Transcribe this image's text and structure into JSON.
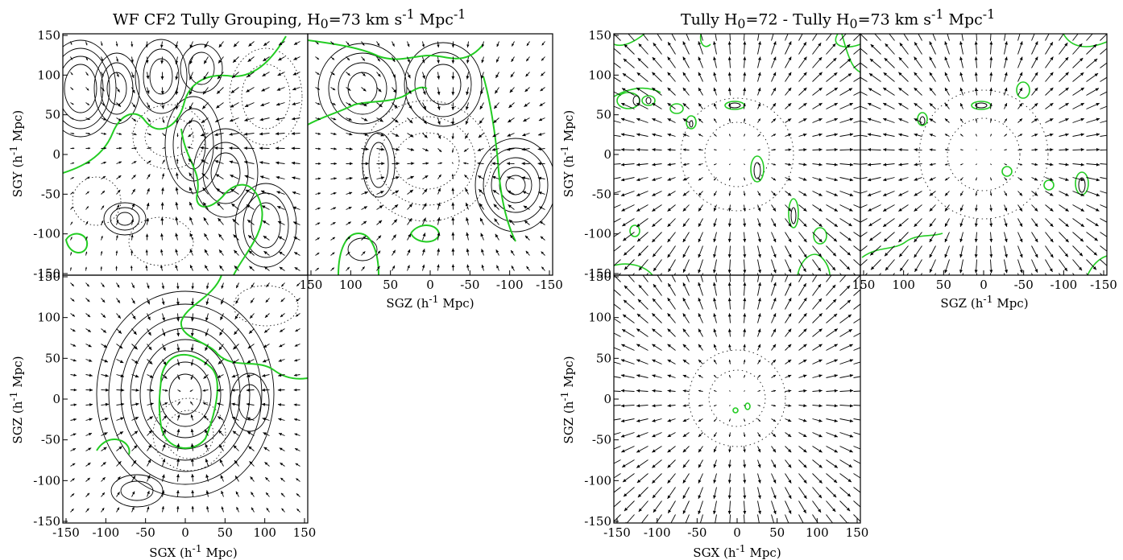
{
  "left_figure": {
    "title_a": "WF CF2 Tully Grouping, H",
    "title_sub": "0",
    "title_b": "=73 km s",
    "title_sup1": "-1",
    "title_c": " Mpc",
    "title_sup2": "-1"
  },
  "right_figure": {
    "title_a": "Tully H",
    "title_sub1": "0",
    "title_b": "=72 - Tully H",
    "title_sub2": "0",
    "title_c": "=73 km s",
    "title_sup1": "-1",
    "title_d": " Mpc",
    "title_sup2": "-1"
  },
  "axes": {
    "sgx_label": "SGX (h",
    "sgy_label": "SGY (h",
    "sgz_label": "SGZ (h",
    "unit_sup": "-1",
    "unit_tail": " Mpc)",
    "y_ticks": [
      "150",
      "100",
      "50",
      "0",
      "-50",
      "-100",
      "-150"
    ],
    "x_ticks": [
      "-150",
      "-100",
      "-50",
      "0",
      "50",
      "100",
      "150"
    ],
    "sgz_ticks": [
      "150",
      "100",
      "50",
      "0",
      "-50",
      "-100",
      "-150"
    ]
  },
  "colors": {
    "contour": "#000000",
    "zero_contour": "#22cc22",
    "arrow": "#000000"
  }
}
